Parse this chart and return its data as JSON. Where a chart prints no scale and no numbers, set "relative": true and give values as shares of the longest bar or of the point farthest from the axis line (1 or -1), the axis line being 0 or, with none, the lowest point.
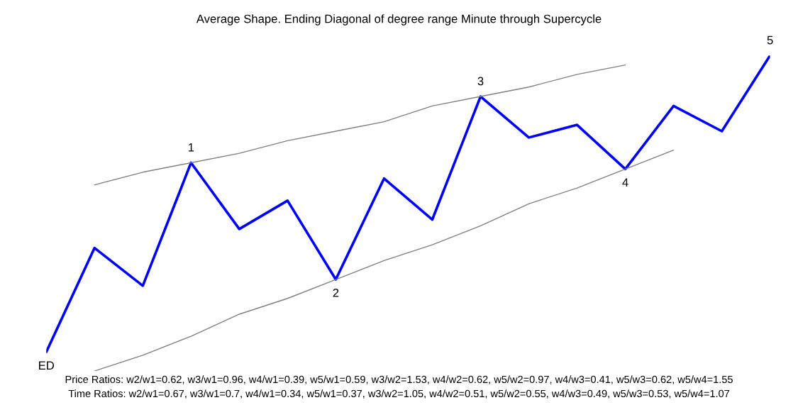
{
  "chart_data": {
    "type": "line",
    "relative": true,
    "title": "Average Shape. Ending Diagonal of degree range Minute through Supercycle",
    "categories": [
      null,
      null,
      null,
      null,
      null,
      null,
      null,
      null,
      null,
      null,
      null,
      null,
      null,
      null,
      null,
      null
    ],
    "series": [
      {
        "color": "#0000ff",
        "values": [
          0.06,
          0.39,
          0.27,
          0.66,
          0.45,
          0.54,
          0.29,
          0.61,
          0.48,
          0.87,
          0.74,
          0.78,
          0.64,
          0.84,
          0.76,
          1.0
        ]
      },
      {
        "color": "#808080",
        "values": [
          null,
          0.59,
          0.63,
          0.66,
          0.69,
          0.73,
          0.76,
          0.79,
          0.84,
          0.87,
          0.9,
          0.94,
          0.97,
          null,
          null,
          null
        ]
      },
      {
        "color": "#808080",
        "values": [
          null,
          0,
          0.05,
          0.11,
          0.18,
          0.23,
          0.29,
          0.35,
          0.4,
          0.46,
          0.53,
          0.58,
          0.64,
          0.7,
          null,
          null
        ]
      }
    ],
    "annotations": [
      {
        "text": "ED",
        "y": 0.06
      },
      {
        "text": "1",
        "y": 0.66
      },
      {
        "text": "2",
        "y": 0.29
      },
      {
        "text": "3",
        "y": 0.87
      },
      {
        "text": "4",
        "y": 0.64
      },
      {
        "text": "5",
        "y": 1.0
      },
      "Price Ratios: w2/w1=0.62, w3/w1=0.96, w4/w1=0.39, w5/w1=0.59, w3/w2=1.53, w4/w2=0.62, w5/w2=0.97, w4/w3=0.41, w5/w3=0.62, w5/w4=1.55",
      "Time Ratios: w2/w1=0.67, w3/w1=0.7, w4/w1=0.34, w5/w1=0.37, w3/w2=1.05, w4/w2=0.51, w5/w2=0.55, w4/w3=0.49, w5/w3=0.53, w5/w4=1.07"
    ]
  }
}
